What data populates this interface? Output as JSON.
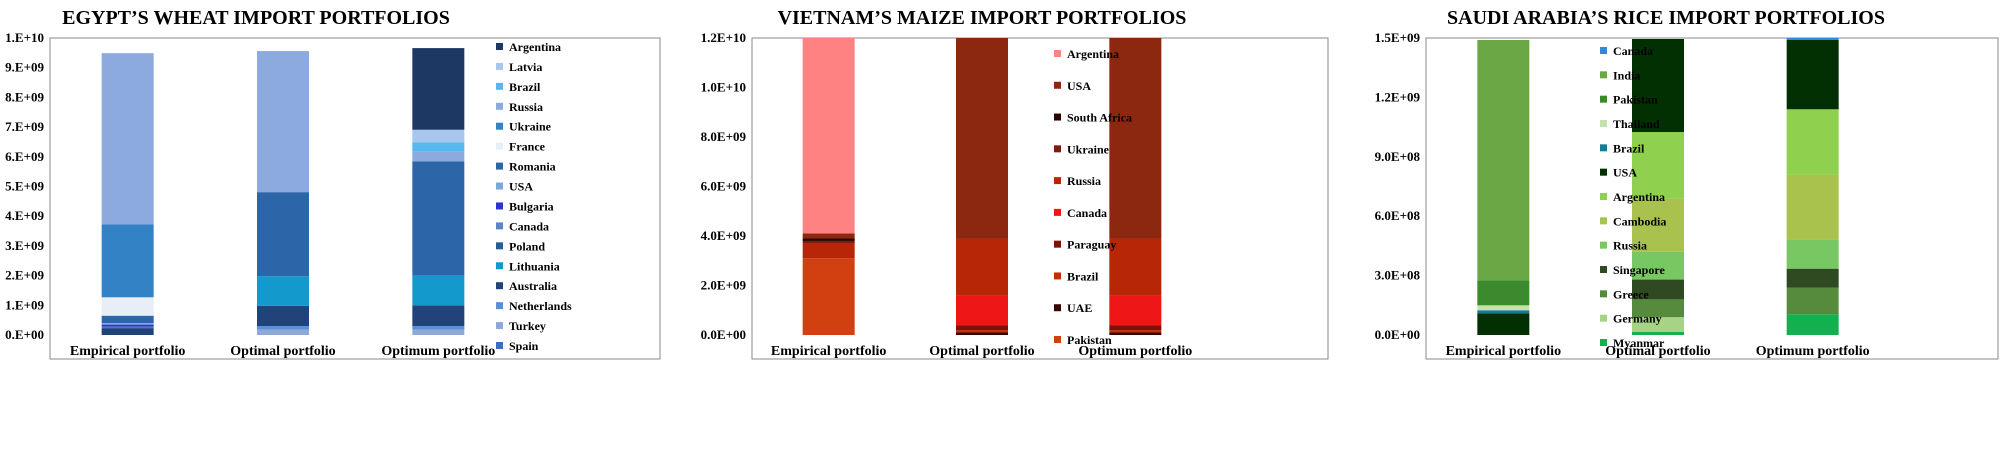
{
  "chart_data": [
    {
      "type": "bar",
      "stacked": true,
      "title": "EGYPT’S WHEAT IMPORT PORTFOLIOS",
      "categories": [
        "Empirical portfolio",
        "Optimal portfolio",
        "Optimum portfolio"
      ],
      "ylim": [
        0,
        10000000000
      ],
      "yticks": [
        "0.E+00",
        "1.E+09",
        "2.E+09",
        "3.E+09",
        "4.E+09",
        "5.E+09",
        "6.E+09",
        "7.E+09",
        "8.E+09",
        "9.E+09",
        "1.E+10"
      ],
      "legend_position": "right",
      "series": [
        {
          "name": "Spain",
          "color": "#3a6fbf",
          "values": [
            0,
            0,
            0
          ]
        },
        {
          "name": "Turkey",
          "color": "#8fa8d8",
          "values": [
            0,
            180000000,
            180000000
          ]
        },
        {
          "name": "Netherlands",
          "color": "#5b8fd6",
          "values": [
            0,
            120000000,
            120000000
          ]
        },
        {
          "name": "Australia",
          "color": "#22427a",
          "values": [
            230000000,
            680000000,
            700000000
          ]
        },
        {
          "name": "Lithuania",
          "color": "#1499cc",
          "values": [
            0,
            1000000000,
            1020000000
          ]
        },
        {
          "name": "Poland",
          "color": "#245e94",
          "values": [
            30000000,
            0,
            0
          ]
        },
        {
          "name": "Canada",
          "color": "#5b86c6",
          "values": [
            20000000,
            0,
            0
          ]
        },
        {
          "name": "Bulgaria",
          "color": "#2a35d4",
          "values": [
            70000000,
            0,
            0
          ]
        },
        {
          "name": "USA",
          "color": "#7aa8dd",
          "values": [
            50000000,
            0,
            0
          ]
        },
        {
          "name": "Romania",
          "color": "#2c66a8",
          "values": [
            250000000,
            2830000000,
            3830000000
          ]
        },
        {
          "name": "France",
          "color": "#e8eef8",
          "values": [
            620000000,
            0,
            0
          ]
        },
        {
          "name": "Ukraine",
          "color": "#3482c6",
          "values": [
            2450000000,
            0,
            0
          ]
        },
        {
          "name": "Russia",
          "color": "#8daadf",
          "values": [
            5770000000,
            4750000000,
            320000000
          ]
        },
        {
          "name": "Brazil",
          "color": "#54b9ee",
          "values": [
            0,
            0,
            320000000
          ]
        },
        {
          "name": "Latvia",
          "color": "#a7c7ee",
          "values": [
            0,
            0,
            420000000
          ]
        },
        {
          "name": "Argentina",
          "color": "#1e3864",
          "values": [
            0,
            0,
            2750000000
          ]
        }
      ]
    },
    {
      "type": "bar",
      "stacked": true,
      "title": "VIETNAM’S MAIZE IMPORT PORTFOLIOS",
      "categories": [
        "Empirical portfolio",
        "Optimal portfolio",
        "Optimum portfolio"
      ],
      "ylim": [
        0,
        12000000000
      ],
      "yticks": [
        "0.0E+00",
        "2.0E+09",
        "4.0E+09",
        "6.0E+09",
        "8.0E+09",
        "1.0E+10",
        "1.2E+10"
      ],
      "legend_position": "right",
      "series": [
        {
          "name": "Pakistan",
          "color": "#d04010",
          "values": [
            3100000000,
            0,
            0
          ]
        },
        {
          "name": "UAE",
          "color": "#3a0500",
          "values": [
            0,
            100000000,
            100000000
          ]
        },
        {
          "name": "Brazil",
          "color": "#c42e06",
          "values": [
            0,
            100000000,
            100000000
          ]
        },
        {
          "name": "Paraguay",
          "color": "#7a1408",
          "values": [
            0,
            200000000,
            200000000
          ]
        },
        {
          "name": "Canada",
          "color": "#ee1616",
          "values": [
            0,
            1200000000,
            1200000000
          ]
        },
        {
          "name": "Russia",
          "color": "#b82608",
          "values": [
            600000000,
            2300000000,
            2300000000
          ]
        },
        {
          "name": "Ukraine",
          "color": "#7a1d0e",
          "values": [
            100000000,
            0,
            0
          ]
        },
        {
          "name": "South Africa",
          "color": "#2a0400",
          "values": [
            100000000,
            0,
            0
          ]
        },
        {
          "name": "USA",
          "color": "#8c2810",
          "values": [
            200000000,
            8100000000,
            8100000000
          ]
        },
        {
          "name": "Argentina",
          "color": "#ff8282",
          "values": [
            7900000000,
            0,
            0
          ]
        }
      ]
    },
    {
      "type": "bar",
      "stacked": true,
      "title": "SAUDI ARABIA’S RICE IMPORT PORTFOLIOS",
      "categories": [
        "Empirical portfolio",
        "Optimal portfolio",
        "Optimum portfolio"
      ],
      "ylim": [
        0,
        1500000000
      ],
      "yticks": [
        "0.0E+00",
        "3.0E+08",
        "6.0E+08",
        "9.0E+08",
        "1.2E+09",
        "1.5E+09"
      ],
      "legend_position": "right",
      "series": [
        {
          "name": "Myanmar",
          "color": "#12b04e",
          "values": [
            0,
            15000000,
            105000000
          ]
        },
        {
          "name": "Germany",
          "color": "#a6d386",
          "values": [
            0,
            75000000,
            0
          ]
        },
        {
          "name": "Greece",
          "color": "#568a3c",
          "values": [
            0,
            90000000,
            135000000
          ]
        },
        {
          "name": "Singapore",
          "color": "#2f4a22",
          "values": [
            0,
            100000000,
            95000000
          ]
        },
        {
          "name": "Russia",
          "color": "#77c862",
          "values": [
            0,
            140000000,
            145000000
          ]
        },
        {
          "name": "Cambodia",
          "color": "#a9c24e",
          "values": [
            0,
            270000000,
            330000000
          ]
        },
        {
          "name": "Argentina",
          "color": "#8fd14e",
          "values": [
            0,
            335000000,
            330000000
          ]
        },
        {
          "name": "USA",
          "color": "#033002",
          "values": [
            110000000,
            470000000,
            350000000
          ]
        },
        {
          "name": "Brazil",
          "color": "#137d96",
          "values": [
            15000000,
            0,
            0
          ]
        },
        {
          "name": "Thailand",
          "color": "#c4e2ad",
          "values": [
            25000000,
            0,
            0
          ]
        },
        {
          "name": "Pakistan",
          "color": "#3c8a2e",
          "values": [
            125000000,
            0,
            0
          ]
        },
        {
          "name": "India",
          "color": "#6aa845",
          "values": [
            1215000000,
            0,
            0
          ]
        },
        {
          "name": "Canada",
          "color": "#2e8ad8",
          "values": [
            0,
            0,
            10000000
          ]
        }
      ]
    }
  ]
}
